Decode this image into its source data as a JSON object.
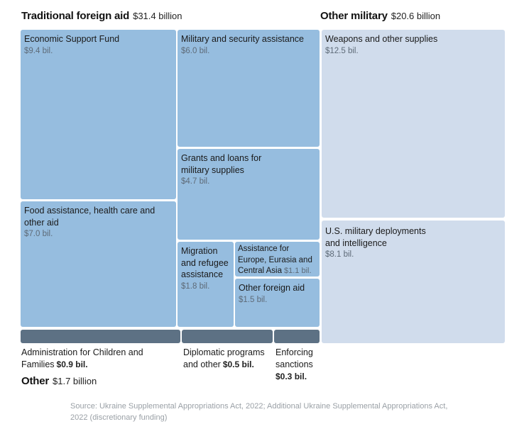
{
  "chart_data": {
    "type": "treemap",
    "unit": "billion",
    "groups": [
      {
        "name": "Traditional foreign aid",
        "total": "$31.4 billion",
        "items": [
          {
            "label": "Economic Support Fund",
            "value": 9.4,
            "value_text": "$9.4 bil."
          },
          {
            "label": "Military and security assistance",
            "value": 6.0,
            "value_text": "$6.0 bil."
          },
          {
            "label": "Food assistance, health care and other aid",
            "value": 7.0,
            "value_text": "$7.0 bil."
          },
          {
            "label": "Grants and loans for military supplies",
            "value": 4.7,
            "value_text": "$4.7 bil."
          },
          {
            "label": "Migration and refugee assistance",
            "value": 1.8,
            "value_text": "$1.8 bil."
          },
          {
            "label": "Assistance for Europe, Eurasia and Central Asia",
            "value": 1.1,
            "value_text": "$1.1 bil."
          },
          {
            "label": "Other foreign aid",
            "value": 1.5,
            "value_text": "$1.5 bil."
          }
        ]
      },
      {
        "name": "Other military",
        "total": "$20.6 billion",
        "items": [
          {
            "label": "Weapons and other supplies",
            "value": 12.5,
            "value_text": "$12.5 bil."
          },
          {
            "label": "U.S. military deployments and intelligence",
            "value": 8.1,
            "value_text": "$8.1 bil."
          }
        ]
      },
      {
        "name": "Other",
        "total": "$1.7 billion",
        "items": [
          {
            "label": "Administration for Children and Families",
            "value": 0.9,
            "value_text": "$0.9 bil."
          },
          {
            "label": "Diplomatic programs and other",
            "value": 0.5,
            "value_text": "$0.5 bil."
          },
          {
            "label": "Enforcing sanctions",
            "value": 0.3,
            "value_text": "$0.3 bil."
          }
        ]
      }
    ],
    "source": "Source: Ukraine Supplemental Appropriations Act, 2022; Additional Ukraine Supplemental Appropriations Act, 2022 (discretionary funding)"
  },
  "colors": {
    "traditional_aid": "#96bddf",
    "other_military": "#d0dcec",
    "other": "#5d7184"
  }
}
